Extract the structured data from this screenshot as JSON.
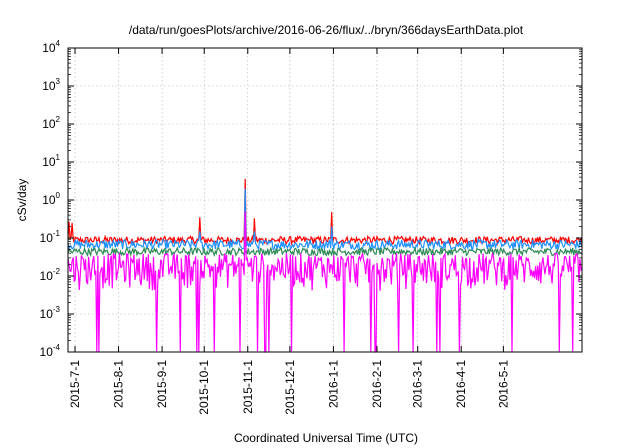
{
  "chart_data": {
    "type": "line",
    "title": "/data/run/goesPlots/archive/2016-06-26/flux/../bryn/366daysEarthData.plot",
    "xlabel": "Coordinated Universal Time (UTC)",
    "ylabel": "cSv/day",
    "yscale": "log",
    "ylim": [
      0.0001,
      10000
    ],
    "xlim": [
      "2015-06-26",
      "2016-06-26"
    ],
    "y_ticks": [
      {
        "base": "10",
        "exp": "-4",
        "value": 0.0001
      },
      {
        "base": "10",
        "exp": "-3",
        "value": 0.001
      },
      {
        "base": "10",
        "exp": "-2",
        "value": 0.01
      },
      {
        "base": "10",
        "exp": "-1",
        "value": 0.1
      },
      {
        "base": "10",
        "exp": "0",
        "value": 1
      },
      {
        "base": "10",
        "exp": "1",
        "value": 10
      },
      {
        "base": "10",
        "exp": "2",
        "value": 100
      },
      {
        "base": "10",
        "exp": "3",
        "value": 1000
      },
      {
        "base": "10",
        "exp": "4",
        "value": 10000
      }
    ],
    "x_ticks": [
      "2015-7-1",
      "2015-8-1",
      "2015-9-1",
      "2015-10-1",
      "2015-11-1",
      "2015-12-1",
      "2016-1-1",
      "2016-2-1",
      "2016-3-1",
      "2016-4-1",
      "2016-5-1"
    ],
    "grid": true,
    "series": [
      {
        "color": "#ff0000",
        "typical_range": [
          0.07,
          0.11
        ],
        "spikes": [
          {
            "date": "2015-06-27",
            "value": 0.27
          },
          {
            "date": "2015-06-29",
            "value": 0.25
          },
          {
            "date": "2015-09-28",
            "value": 0.35
          },
          {
            "date": "2015-10-30",
            "value": 3.6
          },
          {
            "date": "2015-11-06",
            "value": 0.33
          },
          {
            "date": "2015-12-31",
            "value": 0.48
          }
        ]
      },
      {
        "color": "#1e90ff",
        "typical_range": [
          0.05,
          0.09
        ],
        "spikes": [
          {
            "date": "2015-09-28",
            "value": 0.15
          },
          {
            "date": "2015-10-30",
            "value": 2.0
          },
          {
            "date": "2015-11-06",
            "value": 0.15
          },
          {
            "date": "2015-12-31",
            "value": 0.2
          }
        ]
      },
      {
        "color": "#2e8b57",
        "typical_range": [
          0.035,
          0.055
        ],
        "spikes": []
      },
      {
        "color": "#ff00ff",
        "typical_range": [
          0.004,
          0.04
        ],
        "dropouts_to_floor": true,
        "spikes": [
          {
            "date": "2015-10-30",
            "value": 0.5
          }
        ]
      }
    ]
  }
}
